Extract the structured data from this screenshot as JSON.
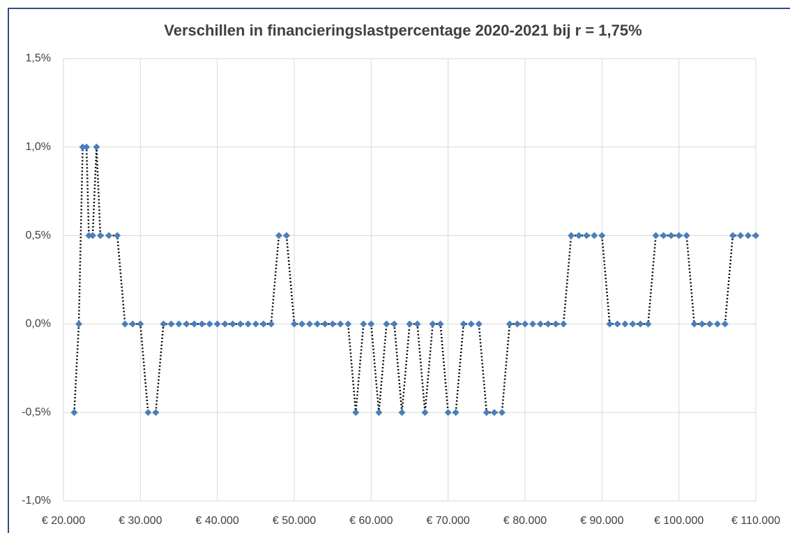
{
  "chart_data": {
    "type": "line",
    "title": "Verschillen in financieringslastpercentage 2020-2021 bij r = 1,75%",
    "x": [
      21400,
      22000,
      22500,
      23000,
      23300,
      23800,
      24300,
      24800,
      25900,
      27000,
      28000,
      29000,
      30000,
      31000,
      32000,
      33000,
      34000,
      35000,
      36000,
      37000,
      38000,
      39000,
      40000,
      41000,
      42000,
      43000,
      44000,
      45000,
      46000,
      47000,
      48000,
      49000,
      50000,
      51000,
      52000,
      53000,
      54000,
      55000,
      56000,
      57000,
      58000,
      59000,
      60000,
      61000,
      62000,
      63000,
      64000,
      65000,
      66000,
      67000,
      68000,
      69000,
      70000,
      71000,
      72000,
      73000,
      74000,
      75000,
      76000,
      77000,
      78000,
      79000,
      80000,
      81000,
      82000,
      83000,
      84000,
      85000,
      86000,
      87000,
      88000,
      89000,
      90000,
      91000,
      92000,
      93000,
      94000,
      95000,
      96000,
      97000,
      98000,
      99000,
      100000,
      101000,
      102000,
      103000,
      104000,
      105000,
      106000,
      107000,
      108000,
      109000,
      110000
    ],
    "series": [
      {
        "color": "#4a7ebb",
        "line_color": "#000000",
        "values": [
          -0.5,
          0,
          1,
          1,
          0.5,
          0.5,
          1,
          0.5,
          0.5,
          0.5,
          0,
          0,
          0,
          -0.5,
          -0.5,
          0,
          0,
          0,
          0,
          0,
          0,
          0,
          0,
          0,
          0,
          0,
          0,
          0,
          0,
          0,
          0.5,
          0.5,
          0,
          0,
          0,
          0,
          0,
          0,
          0,
          0,
          -0.5,
          0,
          0,
          -0.5,
          0,
          0,
          -0.5,
          0,
          0,
          -0.5,
          0,
          0,
          -0.5,
          -0.5,
          0,
          0,
          0,
          -0.5,
          -0.5,
          -0.5,
          0,
          0,
          0,
          0,
          0,
          0,
          0,
          0,
          0.5,
          0.5,
          0.5,
          0.5,
          0.5,
          0,
          0,
          0,
          0,
          0,
          0,
          0.5,
          0.5,
          0.5,
          0.5,
          0.5,
          0,
          0,
          0,
          0,
          0,
          0.5,
          0.5,
          0.5,
          0.5
        ]
      }
    ],
    "xlim": [
      20000,
      110000
    ],
    "xticks": [
      {
        "value": 20000,
        "label": "€ 20.000"
      },
      {
        "value": 30000,
        "label": "€ 30.000"
      },
      {
        "value": 40000,
        "label": "€ 40.000"
      },
      {
        "value": 50000,
        "label": "€ 50.000"
      },
      {
        "value": 60000,
        "label": "€ 60.000"
      },
      {
        "value": 70000,
        "label": "€ 70.000"
      },
      {
        "value": 80000,
        "label": "€ 80.000"
      },
      {
        "value": 90000,
        "label": "€ 90.000"
      },
      {
        "value": 100000,
        "label": "€ 100.000"
      },
      {
        "value": 110000,
        "label": "€ 110.000"
      }
    ],
    "ylim": [
      -1,
      1.5
    ],
    "yticks": [
      {
        "value": -1,
        "label": "-1,0%"
      },
      {
        "value": -0.5,
        "label": "-0,5%"
      },
      {
        "value": 0,
        "label": "0,0%"
      },
      {
        "value": 0.5,
        "label": "0,5%"
      },
      {
        "value": 1,
        "label": "1,0%"
      },
      {
        "value": 1.5,
        "label": "1,5%"
      }
    ],
    "grid": true
  }
}
